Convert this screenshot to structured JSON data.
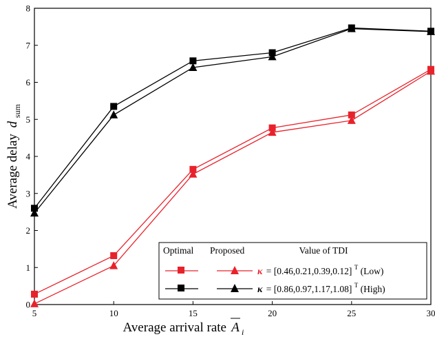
{
  "chart_data": {
    "type": "line",
    "xlabel_main": "Average arrival rate",
    "xlabel_symbol": "A",
    "xlabel_sub": "i",
    "ylabel_main": "Average delay",
    "ylabel_symbol": "d",
    "ylabel_sub": "sum",
    "xlim": [
      5,
      30
    ],
    "ylim": [
      0,
      8
    ],
    "xticks": [
      5,
      10,
      15,
      20,
      25,
      30
    ],
    "yticks": [
      0,
      1,
      2,
      3,
      4,
      5,
      6,
      7,
      8
    ],
    "x": [
      5,
      10,
      15,
      20,
      25,
      30
    ],
    "series": [
      {
        "group": "low",
        "method": "optimal",
        "marker": "square",
        "color": "#e8222b",
        "values": [
          0.28,
          1.32,
          3.65,
          4.77,
          5.12,
          6.35
        ]
      },
      {
        "group": "low",
        "method": "proposed",
        "marker": "triangle",
        "color": "#e8222b",
        "values": [
          0.02,
          1.05,
          3.52,
          4.65,
          4.97,
          6.3
        ]
      },
      {
        "group": "high",
        "method": "optimal",
        "marker": "square",
        "color": "#000000",
        "values": [
          2.6,
          5.35,
          6.58,
          6.8,
          7.47,
          7.38
        ]
      },
      {
        "group": "high",
        "method": "proposed",
        "marker": "triangle",
        "color": "#000000",
        "values": [
          2.47,
          5.12,
          6.4,
          6.69,
          7.45,
          7.37
        ]
      }
    ],
    "legend": {
      "position": "bottom-right",
      "header_optimal": "Optimal",
      "header_proposed": "Proposed",
      "header_value": "Value of TDI",
      "kappa": "κ",
      "row_low": "= [0.46,0.21,0.39,0.12]",
      "row_high": "= [0.86,0.97,1.17,1.08]",
      "superscript": "T",
      "low_label": " (Low)",
      "high_label": " (High)"
    },
    "grid": false
  }
}
